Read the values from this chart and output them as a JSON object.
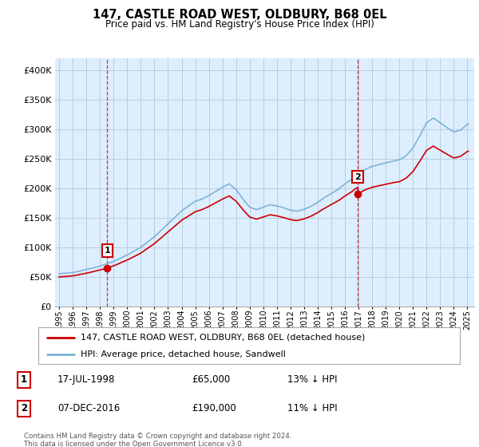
{
  "title": "147, CASTLE ROAD WEST, OLDBURY, B68 0EL",
  "subtitle": "Price paid vs. HM Land Registry's House Price Index (HPI)",
  "legend_line1": "147, CASTLE ROAD WEST, OLDBURY, B68 0EL (detached house)",
  "legend_line2": "HPI: Average price, detached house, Sandwell",
  "annotation1_label": "1",
  "annotation1_date": "17-JUL-1998",
  "annotation1_price": "£65,000",
  "annotation1_hpi": "13% ↓ HPI",
  "annotation1_year": 1998.54,
  "annotation1_value": 65000,
  "annotation2_label": "2",
  "annotation2_date": "07-DEC-2016",
  "annotation2_price": "£190,000",
  "annotation2_hpi": "11% ↓ HPI",
  "annotation2_year": 2016.93,
  "annotation2_value": 190000,
  "footer": "Contains HM Land Registry data © Crown copyright and database right 2024.\nThis data is licensed under the Open Government Licence v3.0.",
  "hpi_color": "#7ab0d4",
  "price_color": "#cc0000",
  "vline_color": "#cc0000",
  "chart_bg": "#ddeeff",
  "background_color": "#ffffff",
  "grid_color": "#bbccdd",
  "ylim": [
    0,
    420000
  ],
  "yticks": [
    0,
    50000,
    100000,
    150000,
    200000,
    250000,
    300000,
    350000,
    400000
  ],
  "xlim_start": 1994.7,
  "xlim_end": 2025.5
}
